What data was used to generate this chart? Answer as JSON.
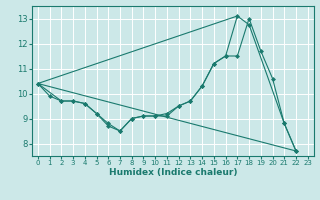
{
  "xlabel": "Humidex (Indice chaleur)",
  "bg_color": "#cce8e8",
  "grid_color": "#ffffff",
  "line_color": "#1a7a6e",
  "xlim": [
    -0.5,
    23.5
  ],
  "ylim": [
    7.5,
    13.5
  ],
  "xticks": [
    0,
    1,
    2,
    3,
    4,
    5,
    6,
    7,
    8,
    9,
    10,
    11,
    12,
    13,
    14,
    15,
    16,
    17,
    18,
    19,
    20,
    21,
    22,
    23
  ],
  "yticks": [
    8,
    9,
    10,
    11,
    12,
    13
  ],
  "series1_x": [
    0,
    1,
    2,
    3,
    4,
    5,
    6,
    7,
    8,
    9,
    10,
    11,
    12,
    13,
    14,
    15,
    16,
    17,
    18,
    19,
    20,
    21,
    22
  ],
  "series1_y": [
    10.4,
    9.9,
    9.7,
    9.7,
    9.6,
    9.2,
    8.7,
    8.5,
    9.0,
    9.1,
    9.1,
    9.1,
    9.5,
    9.7,
    10.3,
    11.2,
    11.5,
    11.5,
    13.0,
    11.7,
    10.6,
    8.8,
    7.7
  ],
  "series2_x": [
    0,
    2,
    3,
    4,
    5,
    6,
    7,
    8,
    9,
    10,
    11,
    12,
    13,
    14,
    15,
    16,
    17,
    18,
    21,
    22
  ],
  "series2_y": [
    10.4,
    9.7,
    9.7,
    9.6,
    9.2,
    8.8,
    8.5,
    9.0,
    9.1,
    9.1,
    9.2,
    9.5,
    9.7,
    10.3,
    11.2,
    11.5,
    13.1,
    12.75,
    8.8,
    7.7
  ],
  "series3_x": [
    0,
    22
  ],
  "series3_y": [
    10.4,
    7.7
  ],
  "series4_x": [
    0,
    17
  ],
  "series4_y": [
    10.4,
    13.1
  ]
}
